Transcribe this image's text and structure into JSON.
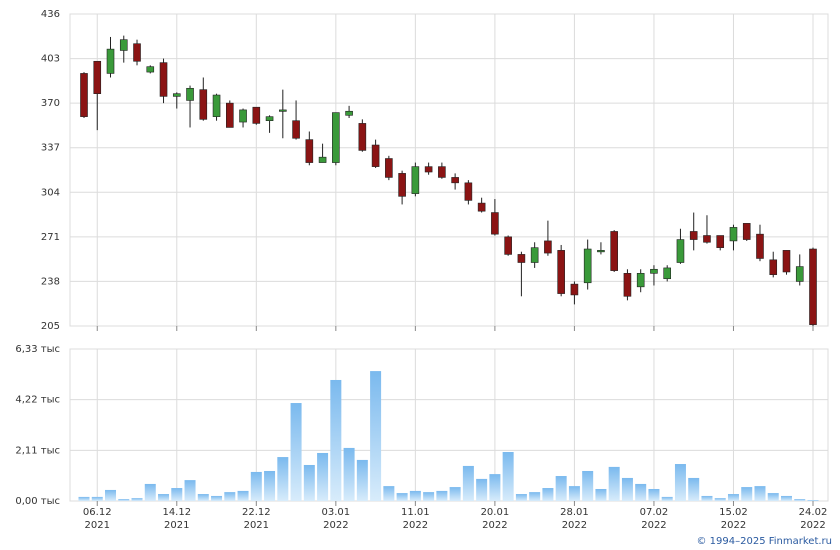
{
  "chart_data": [
    {
      "type": "candlestick",
      "open": [
        392,
        401,
        392,
        409,
        414,
        393,
        400,
        375,
        372,
        380,
        360,
        370,
        356,
        367,
        357,
        364,
        357,
        343,
        326,
        326,
        361,
        355,
        339,
        329,
        318,
        303,
        323,
        323,
        315,
        311,
        296,
        289,
        271,
        258,
        252,
        268,
        261,
        236,
        237,
        260,
        275,
        244,
        234,
        244,
        240,
        252,
        275,
        272,
        272,
        268,
        281,
        273,
        254,
        261,
        238,
        262
      ],
      "high": [
        393,
        401,
        419,
        420,
        417,
        398,
        403,
        378,
        383,
        389,
        377,
        372,
        366,
        367,
        361,
        380,
        372,
        349,
        340,
        363,
        368,
        358,
        343,
        331,
        320,
        326,
        326,
        326,
        318,
        313,
        300,
        299,
        272,
        260,
        267,
        283,
        265,
        238,
        269,
        267,
        276,
        247,
        247,
        250,
        250,
        277,
        289,
        287,
        272,
        280,
        281,
        280,
        260,
        261,
        258,
        263
      ],
      "low": [
        359,
        350,
        389,
        400,
        398,
        392,
        370,
        366,
        352,
        357,
        357,
        352,
        352,
        354,
        348,
        344,
        343,
        324,
        326,
        324,
        359,
        334,
        322,
        313,
        295,
        301,
        317,
        314,
        306,
        295,
        289,
        272,
        257,
        227,
        248,
        257,
        227,
        221,
        232,
        258,
        245,
        224,
        230,
        235,
        238,
        251,
        261,
        266,
        261,
        261,
        268,
        253,
        241,
        243,
        235,
        205
      ],
      "close": [
        360,
        377,
        410,
        417,
        401,
        397,
        375,
        377,
        381,
        358,
        376,
        352,
        365,
        355,
        360,
        365,
        344,
        326,
        330,
        363,
        364,
        335,
        323,
        315,
        301,
        323,
        319,
        315,
        311,
        298,
        290,
        273,
        258,
        252,
        263,
        259,
        229,
        228,
        262,
        261,
        246,
        227,
        244,
        247,
        248,
        269,
        269,
        267,
        263,
        278,
        269,
        255,
        243,
        245,
        249,
        206
      ],
      "up_color": "#3a9a3a",
      "down_color": "#8b1414",
      "ylim": [
        205,
        436
      ],
      "yticks": [
        205,
        238,
        271,
        304,
        337,
        370,
        403,
        436
      ],
      "grid": true
    },
    {
      "type": "bar",
      "categories": [
        null,
        {
          "day": "06.12",
          "year": "2021"
        },
        null,
        null,
        null,
        null,
        null,
        {
          "day": "14.12",
          "year": "2021"
        },
        null,
        null,
        null,
        null,
        null,
        {
          "day": "22.12",
          "year": "2021"
        },
        null,
        null,
        null,
        null,
        null,
        {
          "day": "03.01",
          "year": "2022"
        },
        null,
        null,
        null,
        null,
        null,
        {
          "day": "11.01",
          "year": "2022"
        },
        null,
        null,
        null,
        null,
        null,
        {
          "day": "20.01",
          "year": "2022"
        },
        null,
        null,
        null,
        null,
        null,
        {
          "day": "28.01",
          "year": "2022"
        },
        null,
        null,
        null,
        null,
        null,
        {
          "day": "07.02",
          "year": "2022"
        },
        null,
        null,
        null,
        null,
        null,
        {
          "day": "15.02",
          "year": "2022"
        },
        null,
        null,
        null,
        null,
        null,
        {
          "day": "24.02",
          "year": "2022"
        }
      ],
      "values": [
        0.17,
        0.17,
        0.46,
        0.08,
        0.12,
        0.71,
        0.29,
        0.54,
        0.87,
        0.29,
        0.21,
        0.37,
        0.42,
        1.21,
        1.25,
        1.83,
        4.08,
        1.5,
        2.0,
        5.04,
        2.21,
        1.71,
        5.41,
        0.62,
        0.33,
        0.42,
        0.37,
        0.42,
        0.58,
        1.46,
        0.92,
        1.12,
        2.04,
        0.29,
        0.37,
        0.54,
        1.04,
        0.62,
        1.25,
        0.5,
        1.42,
        0.96,
        0.71,
        0.5,
        0.17,
        1.54,
        0.96,
        0.21,
        0.12,
        0.29,
        0.58,
        0.62,
        0.33,
        0.21,
        0.08,
        0.04
      ],
      "color": "#8cc6f2",
      "ylim": [
        0,
        6.33
      ],
      "yticks": [
        {
          "value": 0,
          "label": "0,00 тыс"
        },
        {
          "value": 2.11,
          "label": "2,11 тыс"
        },
        {
          "value": 4.22,
          "label": "4,22 тыс"
        },
        {
          "value": 6.33,
          "label": "6,33 тыс"
        }
      ],
      "grid": true
    }
  ],
  "copyright": "© 1994–2025 Finmarket.ru"
}
